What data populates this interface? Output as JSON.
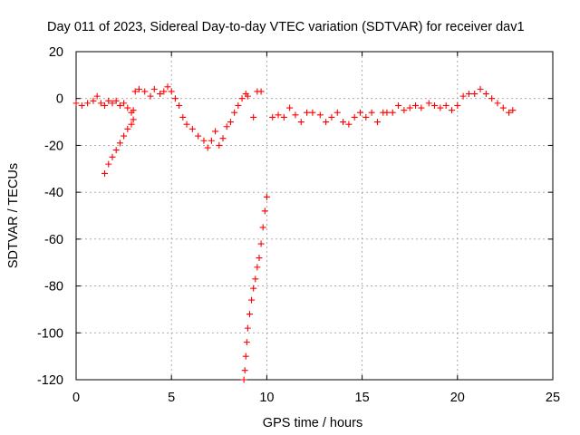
{
  "chart_data": {
    "type": "scatter",
    "title": "Day 011 of 2023, Sidereal Day-to-day VTEC variation (SDTVAR) for receiver dav1",
    "xlabel": "GPS time / hours",
    "ylabel": "SDTVAR / TECUs",
    "xlim": [
      0,
      25
    ],
    "ylim": [
      -120,
      20
    ],
    "xticks": [
      0,
      5,
      10,
      15,
      20,
      25
    ],
    "yticks": [
      20,
      0,
      -20,
      -40,
      -60,
      -80,
      -100,
      -120
    ],
    "grid": true,
    "marker": "+",
    "color": "#ff0000",
    "series": [
      {
        "name": "main-trace",
        "points": [
          [
            0.0,
            -2
          ],
          [
            0.3,
            -3
          ],
          [
            0.6,
            -2
          ],
          [
            0.9,
            -1
          ],
          [
            1.1,
            1
          ],
          [
            1.3,
            -2
          ],
          [
            1.5,
            -3
          ],
          [
            1.7,
            -1
          ],
          [
            1.9,
            -2
          ],
          [
            2.1,
            -1
          ],
          [
            2.3,
            -3
          ],
          [
            2.5,
            -2
          ],
          [
            2.7,
            -4
          ],
          [
            2.9,
            -6
          ],
          [
            3.0,
            -5
          ],
          [
            3.1,
            3
          ],
          [
            3.3,
            4
          ],
          [
            3.6,
            3
          ],
          [
            3.9,
            1
          ],
          [
            4.1,
            4
          ],
          [
            4.4,
            2
          ],
          [
            4.6,
            3
          ],
          [
            4.8,
            5
          ],
          [
            5.0,
            3
          ],
          [
            5.2,
            0
          ],
          [
            5.4,
            -3
          ],
          [
            5.6,
            -8
          ],
          [
            5.8,
            -11
          ],
          [
            6.1,
            -13
          ],
          [
            6.4,
            -16
          ],
          [
            6.7,
            -18
          ],
          [
            6.9,
            -21
          ],
          [
            7.1,
            -18
          ],
          [
            7.3,
            -14
          ],
          [
            7.5,
            -20
          ],
          [
            7.7,
            -17
          ],
          [
            7.9,
            -12
          ],
          [
            8.1,
            -10
          ],
          [
            8.3,
            -6
          ],
          [
            8.5,
            -3
          ],
          [
            8.7,
            0
          ],
          [
            8.9,
            2
          ],
          [
            9.0,
            1
          ],
          [
            9.5,
            3
          ],
          [
            9.7,
            3
          ],
          [
            9.3,
            -8
          ],
          [
            10.3,
            -8
          ],
          [
            10.6,
            -7
          ],
          [
            10.9,
            -8
          ],
          [
            11.2,
            -4
          ],
          [
            11.5,
            -7
          ],
          [
            11.8,
            -10
          ],
          [
            12.1,
            -6
          ],
          [
            12.4,
            -6
          ],
          [
            12.8,
            -7
          ],
          [
            13.1,
            -10
          ],
          [
            13.4,
            -8
          ],
          [
            13.7,
            -6
          ],
          [
            14.0,
            -10
          ],
          [
            14.3,
            -11
          ],
          [
            14.6,
            -8
          ],
          [
            14.9,
            -6
          ],
          [
            15.2,
            -8
          ],
          [
            15.5,
            -6
          ],
          [
            15.8,
            -10
          ],
          [
            16.1,
            -6
          ],
          [
            16.3,
            -6
          ],
          [
            16.6,
            -6
          ],
          [
            16.9,
            -3
          ],
          [
            17.2,
            -5
          ],
          [
            17.5,
            -4
          ],
          [
            17.8,
            -3
          ],
          [
            18.1,
            -4
          ],
          [
            18.5,
            -2
          ],
          [
            18.8,
            -3
          ],
          [
            19.1,
            -4
          ],
          [
            19.4,
            -3
          ],
          [
            19.7,
            -5
          ],
          [
            20.0,
            -3
          ],
          [
            20.3,
            1
          ],
          [
            20.6,
            2
          ],
          [
            20.9,
            2
          ],
          [
            21.2,
            4
          ],
          [
            21.5,
            2
          ],
          [
            21.8,
            0
          ],
          [
            22.1,
            -2
          ],
          [
            22.4,
            -4
          ],
          [
            22.7,
            -6
          ],
          [
            22.9,
            -5
          ]
        ]
      },
      {
        "name": "rising-arc",
        "points": [
          [
            1.5,
            -32
          ],
          [
            1.7,
            -28
          ],
          [
            1.9,
            -25
          ],
          [
            2.1,
            -22
          ],
          [
            2.3,
            -19
          ],
          [
            2.5,
            -16
          ],
          [
            2.7,
            -13
          ],
          [
            2.9,
            -11
          ],
          [
            3.0,
            -9
          ]
        ]
      },
      {
        "name": "steep-drop",
        "points": [
          [
            10.0,
            -42
          ],
          [
            9.9,
            -48
          ],
          [
            9.8,
            -55
          ],
          [
            9.7,
            -62
          ],
          [
            9.6,
            -68
          ],
          [
            9.5,
            -72
          ],
          [
            9.4,
            -77
          ],
          [
            9.3,
            -81
          ],
          [
            9.2,
            -86
          ],
          [
            9.1,
            -92
          ],
          [
            9.0,
            -98
          ],
          [
            8.95,
            -104
          ],
          [
            8.9,
            -110
          ],
          [
            8.85,
            -116
          ],
          [
            8.8,
            -120
          ]
        ]
      }
    ]
  }
}
